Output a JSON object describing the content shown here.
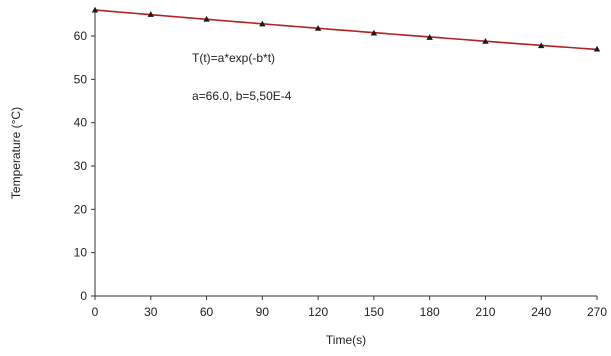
{
  "chart_data": {
    "type": "scatter",
    "title": "",
    "xlabel": "Time(s)",
    "ylabel": "Temperature (°C)",
    "xlim": [
      0,
      270
    ],
    "ylim": [
      0,
      66
    ],
    "xticks": [
      0,
      30,
      60,
      90,
      120,
      150,
      180,
      210,
      240,
      270
    ],
    "yticks": [
      0,
      10,
      20,
      30,
      40,
      50,
      60
    ],
    "grid": false,
    "legend": "none",
    "annotations": [
      "T(t)=a*exp(-b*t)",
      "a=66.0, b=5,50E-4"
    ],
    "series": [
      {
        "kind": "points",
        "marker": "triangle",
        "color": "#1a1a1a",
        "x": [
          0,
          30,
          60,
          90,
          120,
          150,
          180,
          210,
          240,
          270
        ],
        "y": [
          66.0,
          65.0,
          63.9,
          62.8,
          61.8,
          60.7,
          59.7,
          58.8,
          57.8,
          57.0
        ]
      },
      {
        "kind": "fit-line",
        "color": "#b22222",
        "model": "exponential",
        "a": 66.0,
        "b": 0.00055
      }
    ]
  }
}
